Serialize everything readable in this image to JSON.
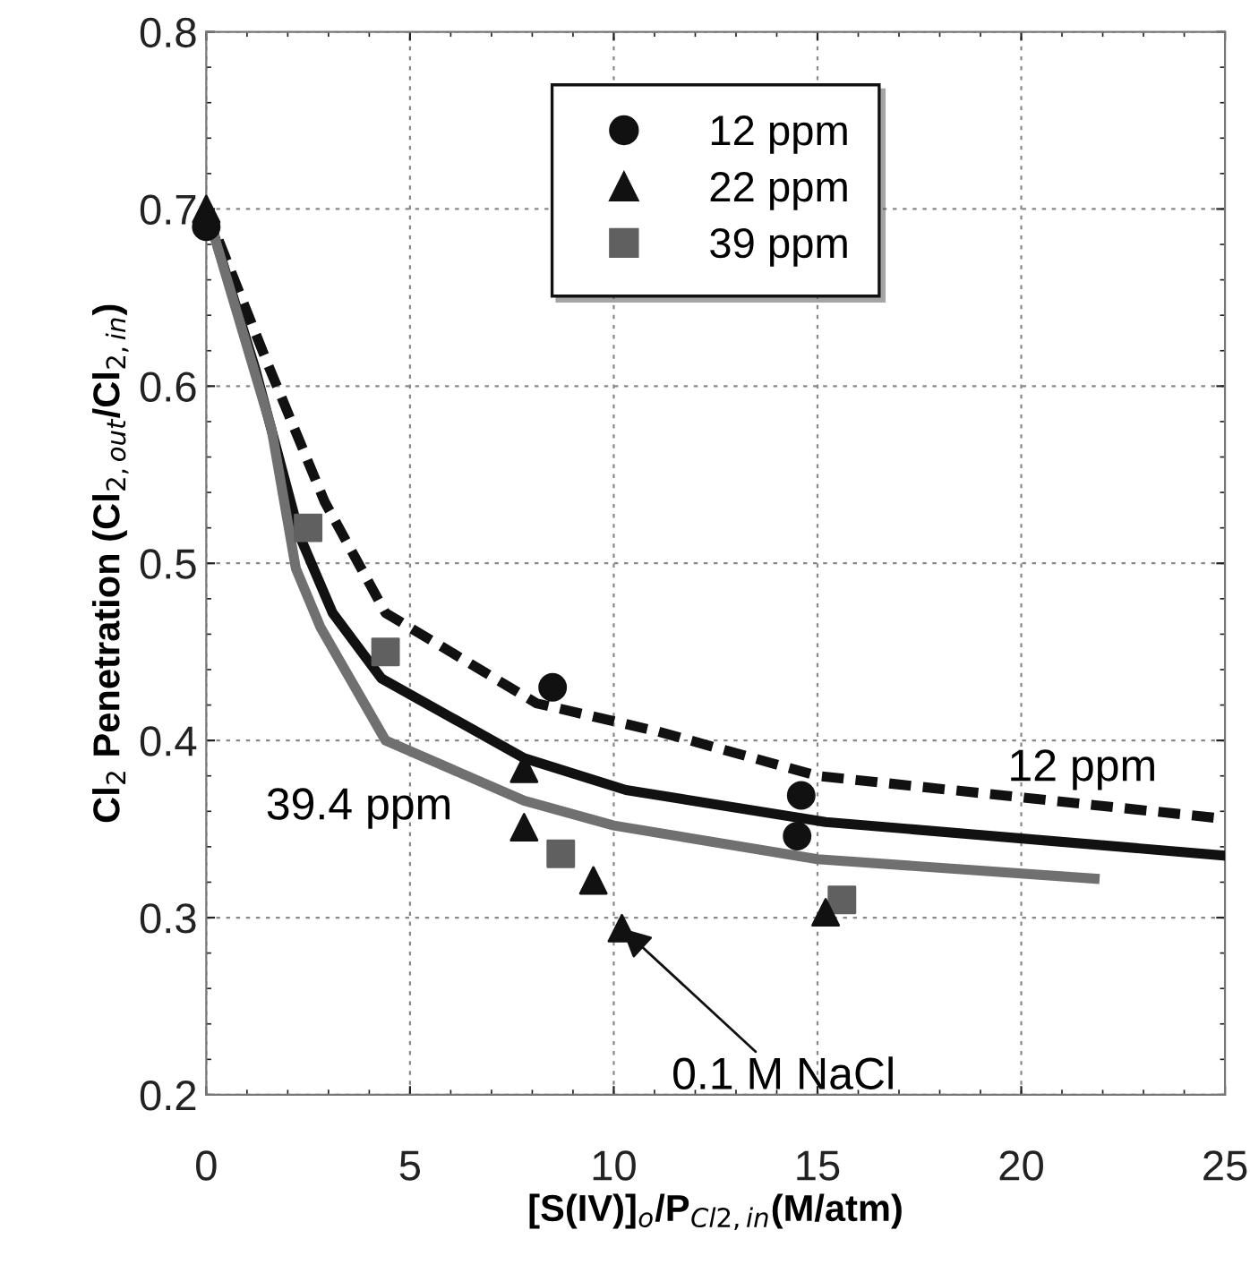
{
  "chart_data": {
    "type": "scatter",
    "xlabel": "[S(IV)]$_{o}$/P$_{Cl2,in}$(M/atm)",
    "ylabel": "Cl$_{2}$ Penetration (Cl$_{2,out}$/Cl$_{2,in}$)",
    "xlim": [
      0,
      25
    ],
    "xticks": [
      0,
      5,
      10,
      15,
      20,
      25
    ],
    "ylim": [
      0.2,
      0.8
    ],
    "yticks": [
      0.2,
      0.3,
      0.4,
      0.5,
      0.6,
      0.7,
      0.8
    ],
    "grid": true,
    "legend": "top",
    "series": [
      {
        "name": "12 ppm",
        "marker": "circle",
        "color": "#111111",
        "x": [
          0,
          8.5,
          14.6,
          14.5
        ],
        "values": [
          0.69,
          0.43,
          0.369,
          0.346
        ]
      },
      {
        "name": "22 ppm",
        "marker": "triangle",
        "color": "#111111",
        "x": [
          0,
          7.8,
          7.8,
          9.5,
          10.2,
          15.2
        ],
        "values": [
          0.7,
          0.384,
          0.351,
          0.321,
          0.294,
          0.303
        ]
      },
      {
        "name": "39 ppm",
        "marker": "square",
        "color": "#606060",
        "x": [
          2.5,
          4.4,
          8.7,
          15.6
        ],
        "values": [
          0.52,
          0.45,
          0.336,
          0.31
        ]
      },
      {
        "type": "line",
        "line_style": "dashed",
        "color": "#111111",
        "x": [
          0,
          1.5,
          2.9,
          4.4,
          8.1,
          11.1,
          15,
          24.9
        ],
        "values": [
          0.7,
          0.613,
          0.535,
          0.472,
          0.421,
          0.405,
          0.38,
          0.356
        ]
      },
      {
        "type": "line",
        "line_style": "solid",
        "color": "#111111",
        "x": [
          0,
          1.2,
          2.3,
          3.1,
          4.3,
          7.8,
          10.3,
          15.2,
          25
        ],
        "values": [
          0.7,
          0.61,
          0.515,
          0.472,
          0.435,
          0.39,
          0.372,
          0.354,
          0.335
        ]
      },
      {
        "type": "line",
        "line_style": "solid",
        "color": "#707070",
        "x": [
          0,
          1.6,
          2.2,
          2.8,
          4.4,
          7.8,
          10,
          15,
          21.8
        ],
        "values": [
          0.7,
          0.576,
          0.497,
          0.464,
          0.4,
          0.366,
          0.352,
          0.333,
          0.322
        ]
      }
    ],
    "annotations": [
      {
        "text": "12 ppm",
        "x": 21.5,
        "y": 0.372
      },
      "39.4 ppm",
      {
        "text": "0.1 M NaCl",
        "x": 10.2,
        "y": 0.294
      }
    ]
  }
}
